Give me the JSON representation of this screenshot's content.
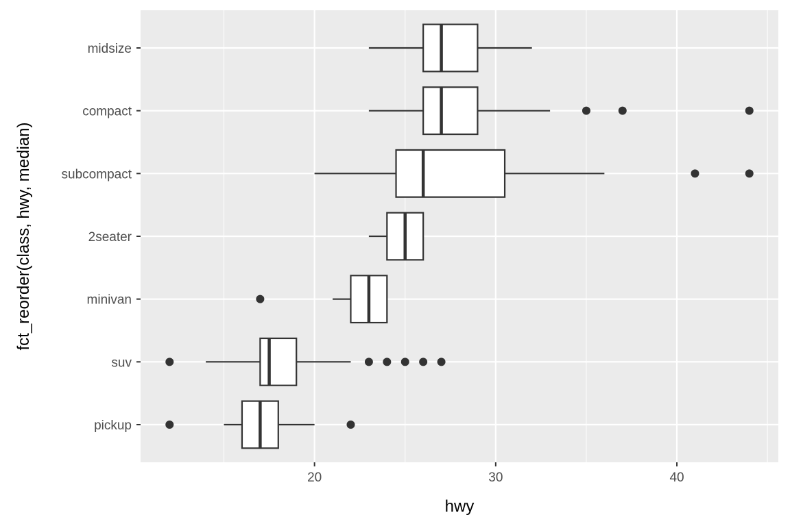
{
  "chart_data": {
    "type": "boxplot",
    "orientation": "horizontal",
    "title": "",
    "xlabel": "hwy",
    "ylabel": "fct_reorder(class, hwy, median)",
    "xlim": [
      10.4,
      45.6
    ],
    "x_major_ticks": [
      20,
      30,
      40
    ],
    "x_minor_ticks": [
      15,
      25,
      35,
      45
    ],
    "grid": true,
    "legend": "none",
    "colors": {
      "panel": "#ebebeb",
      "grid": "#ffffff",
      "box_fill": "#ffffff",
      "box_line": "#333333",
      "outlier": "#333333"
    },
    "categories": [
      "midsize",
      "compact",
      "subcompact",
      "2seater",
      "minivan",
      "suv",
      "pickup"
    ],
    "boxes": [
      {
        "category": "midsize",
        "whisker_low": 23,
        "q1": 26,
        "median": 27,
        "q3": 29,
        "whisker_high": 32,
        "outliers": []
      },
      {
        "category": "compact",
        "whisker_low": 23,
        "q1": 26,
        "median": 27,
        "q3": 29,
        "whisker_high": 33,
        "outliers": [
          35,
          37,
          44
        ]
      },
      {
        "category": "subcompact",
        "whisker_low": 20,
        "q1": 24.5,
        "median": 26,
        "q3": 30.5,
        "whisker_high": 36,
        "outliers": [
          41,
          44
        ]
      },
      {
        "category": "2seater",
        "whisker_low": 23,
        "q1": 24,
        "median": 25,
        "q3": 26,
        "whisker_high": 26,
        "outliers": []
      },
      {
        "category": "minivan",
        "whisker_low": 21,
        "q1": 22,
        "median": 23,
        "q3": 24,
        "whisker_high": 24,
        "outliers": [
          17
        ]
      },
      {
        "category": "suv",
        "whisker_low": 14,
        "q1": 17,
        "median": 17.5,
        "q3": 19,
        "whisker_high": 22,
        "outliers": [
          12,
          23,
          24,
          25,
          26,
          27
        ]
      },
      {
        "category": "pickup",
        "whisker_low": 15,
        "q1": 16,
        "median": 17,
        "q3": 18,
        "whisker_high": 20,
        "outliers": [
          12,
          22
        ]
      }
    ]
  }
}
